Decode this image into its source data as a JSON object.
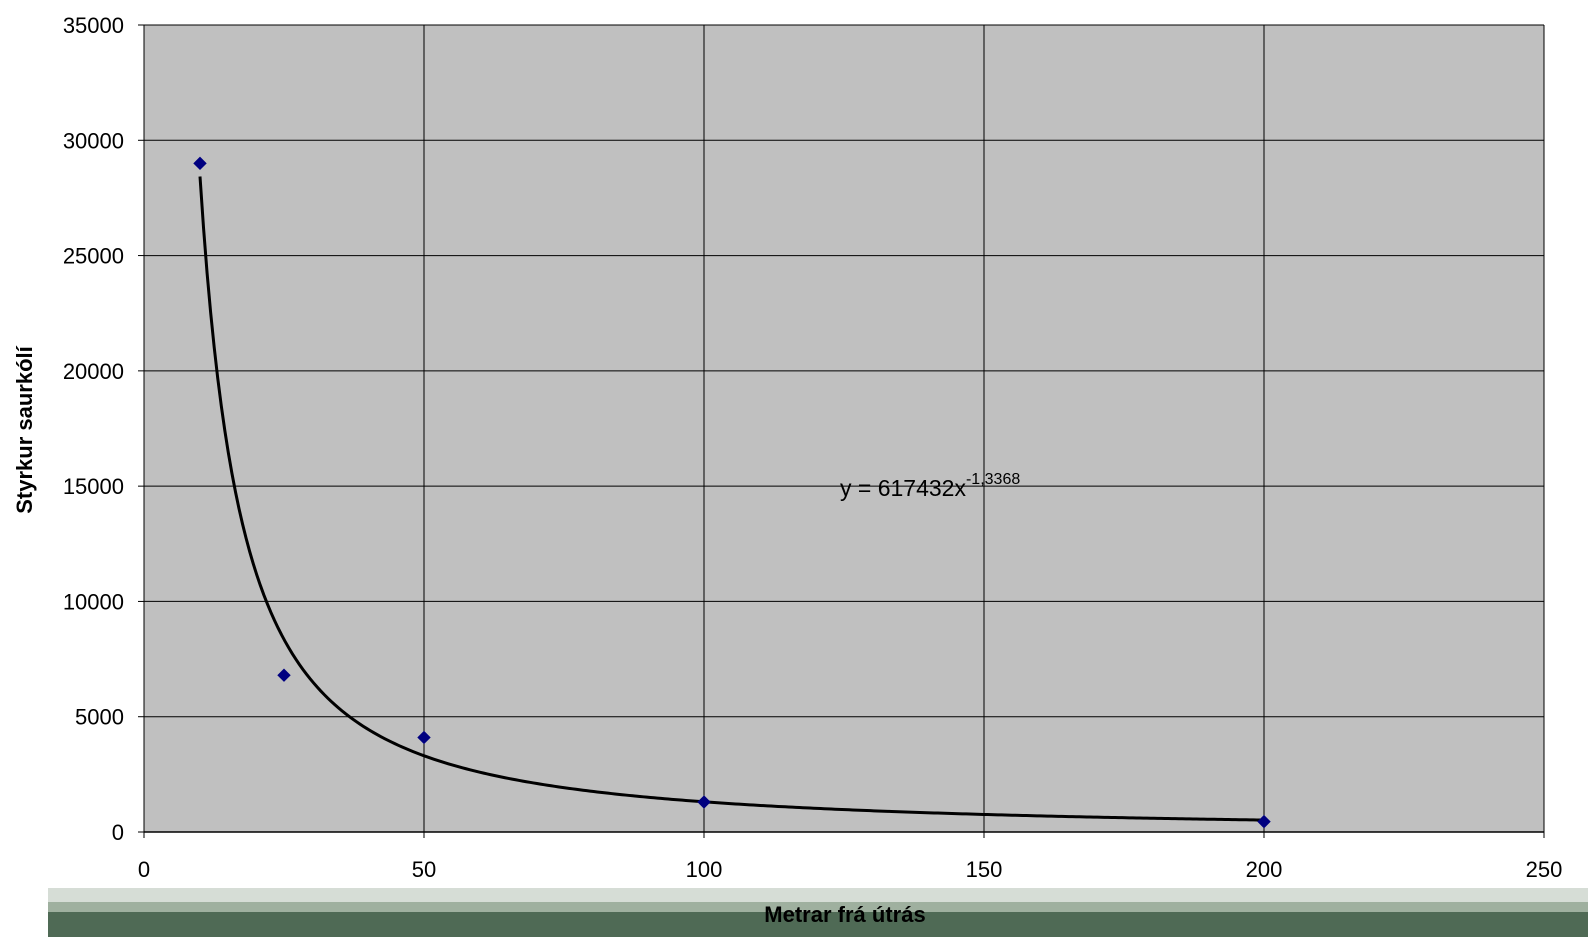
{
  "chart_data": {
    "type": "scatter",
    "xlabel": "Metrar frá útrás",
    "ylabel": "Styrkur saurkólí",
    "xlim": [
      0,
      250
    ],
    "ylim": [
      0,
      35000
    ],
    "x_ticks": [
      "0",
      "50",
      "100",
      "150",
      "200",
      "250"
    ],
    "y_ticks": [
      "0",
      "5000",
      "10000",
      "15000",
      "20000",
      "25000",
      "30000",
      "35000"
    ],
    "grid": true,
    "legend": "none",
    "series": [
      {
        "points": [
          {
            "x": 10,
            "y": 29000
          },
          {
            "x": 25,
            "y": 6800
          },
          {
            "x": 50,
            "y": 4100
          },
          {
            "x": 100,
            "y": 1300
          },
          {
            "x": 200,
            "y": 450
          }
        ]
      }
    ],
    "trendline": {
      "type": "power",
      "coefficient": 617432,
      "exponent": -1.3368,
      "x_range": [
        10,
        200
      ],
      "equation_prefix": "y = 617432x",
      "equation_exponent": "-1,3368"
    },
    "colors": {
      "plot_background": "#c0c0c0",
      "grid": "#000000",
      "marker": "#000080",
      "trendline": "#000000"
    }
  }
}
